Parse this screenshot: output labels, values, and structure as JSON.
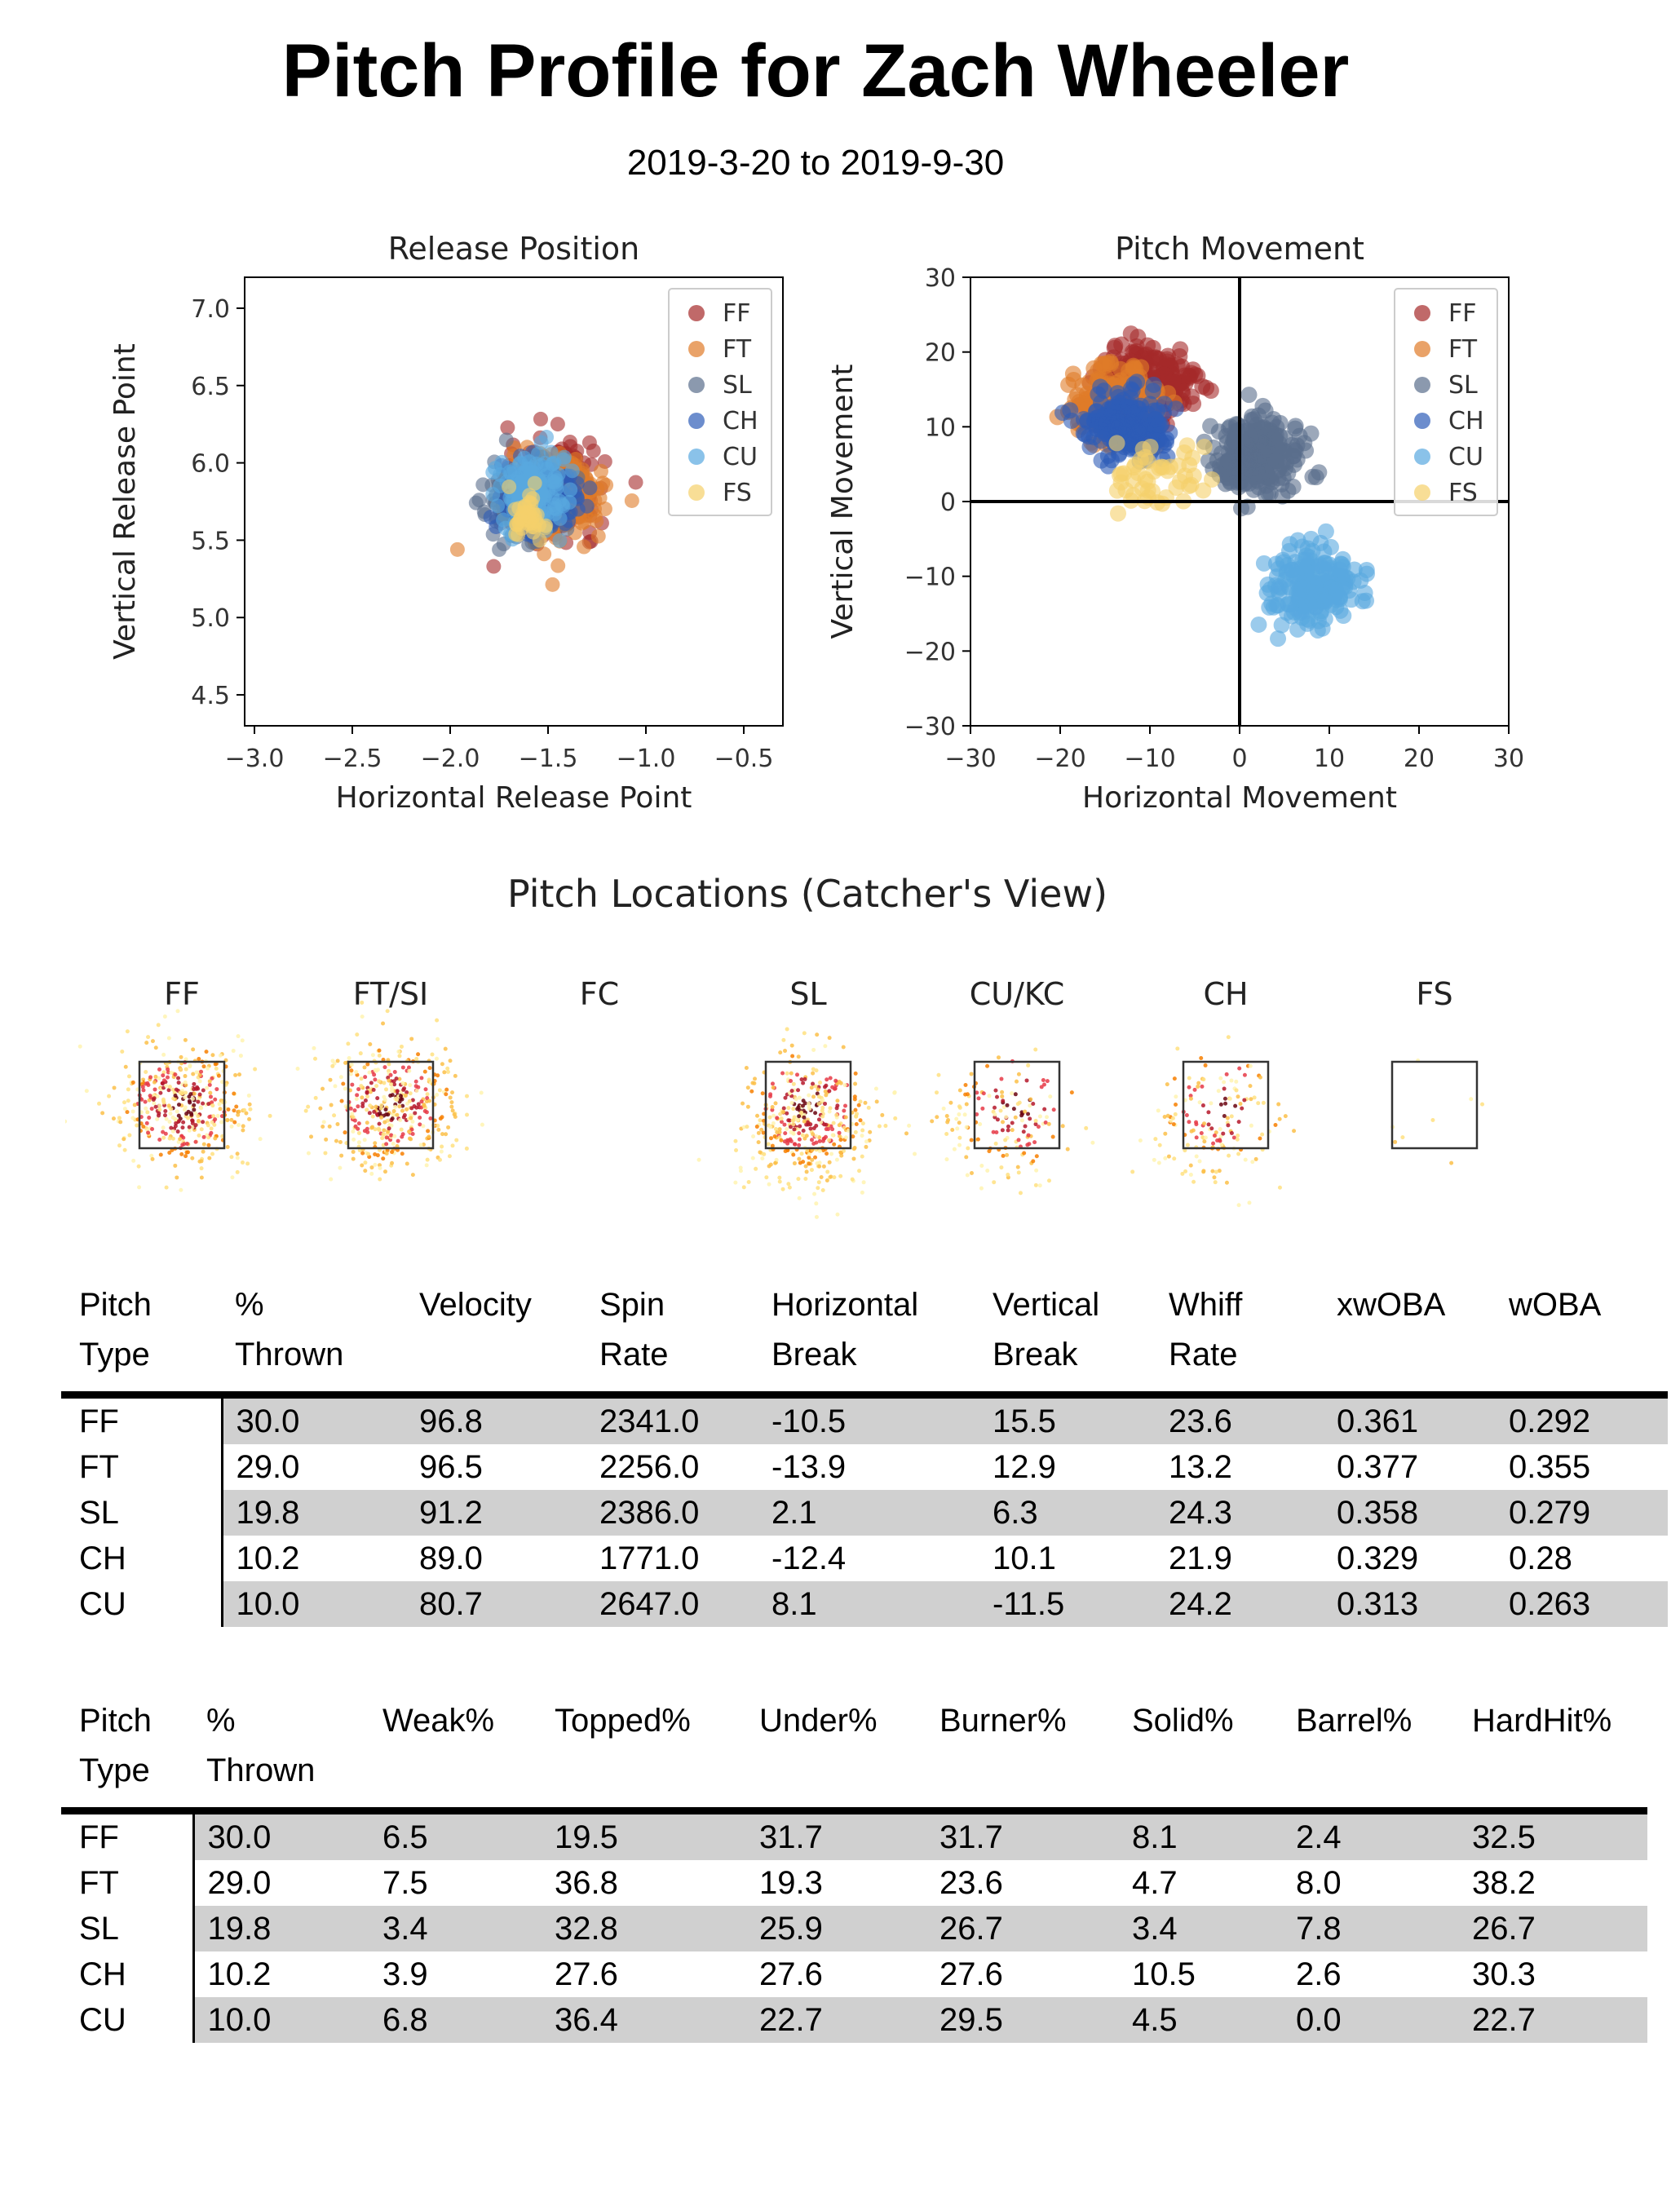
{
  "title": "Pitch Profile for Zach Wheeler",
  "subtitle": "2019-3-20 to 2019-9-30",
  "pitch_colors": {
    "FF": "#a52a2a",
    "FT": "#e07b28",
    "SL": "#5a6e8c",
    "CH": "#2d5cb8",
    "CU": "#58a8e0",
    "FS": "#f5d06a"
  },
  "chart_data": [
    {
      "type": "scatter",
      "title": "Release Position",
      "xlabel": "Horizontal Release Point",
      "ylabel": "Vertical Release Point",
      "xlim": [
        -3.05,
        -0.3
      ],
      "ylim": [
        4.3,
        7.2
      ],
      "xticks": [
        -3.0,
        -2.5,
        -2.0,
        -1.5,
        -1.0,
        -0.5
      ],
      "xtick_labels": [
        "−3.0",
        "−2.5",
        "−2.0",
        "−1.5",
        "−1.0",
        "−0.5"
      ],
      "yticks": [
        4.5,
        5.0,
        5.5,
        6.0,
        6.5,
        7.0
      ],
      "ytick_labels": [
        "4.5",
        "5.0",
        "5.5",
        "6.0",
        "6.5",
        "7.0"
      ],
      "legend": "top-right",
      "series": [
        {
          "name": "FF",
          "center": [
            -1.48,
            5.82
          ],
          "spread": [
            0.11,
            0.14
          ]
        },
        {
          "name": "FT",
          "center": [
            -1.45,
            5.78
          ],
          "spread": [
            0.12,
            0.14
          ]
        },
        {
          "name": "SL",
          "center": [
            -1.62,
            5.78
          ],
          "spread": [
            0.1,
            0.13
          ]
        },
        {
          "name": "CH",
          "center": [
            -1.55,
            5.78
          ],
          "spread": [
            0.1,
            0.12
          ]
        },
        {
          "name": "CU",
          "center": [
            -1.58,
            5.82
          ],
          "spread": [
            0.09,
            0.12
          ]
        },
        {
          "name": "FS",
          "center": [
            -1.6,
            5.65
          ],
          "spread": [
            0.05,
            0.08
          ]
        }
      ]
    },
    {
      "type": "scatter",
      "title": "Pitch Movement",
      "xlabel": "Horizontal Movement",
      "ylabel": "Vertical Movement",
      "xlim": [
        -30,
        30
      ],
      "ylim": [
        -30,
        30
      ],
      "xticks": [
        -30,
        -20,
        -10,
        0,
        10,
        20,
        30
      ],
      "xtick_labels": [
        "−30",
        "−20",
        "−10",
        "0",
        "10",
        "20",
        "30"
      ],
      "yticks": [
        -30,
        -20,
        -10,
        0,
        10,
        20,
        30
      ],
      "ytick_labels": [
        "−30",
        "−20",
        "−10",
        "0",
        "10",
        "20",
        "30"
      ],
      "legend": "top-right",
      "series": [
        {
          "name": "FF",
          "center": [
            -10.5,
            15.5
          ],
          "spread": [
            2.5,
            2.3
          ]
        },
        {
          "name": "FT",
          "center": [
            -13.9,
            12.9
          ],
          "spread": [
            2.5,
            2.6
          ]
        },
        {
          "name": "SL",
          "center": [
            2.1,
            6.3
          ],
          "spread": [
            2.3,
            2.4
          ]
        },
        {
          "name": "CH",
          "center": [
            -12.4,
            10.1
          ],
          "spread": [
            2.3,
            2.2
          ]
        },
        {
          "name": "CU",
          "center": [
            8.1,
            -11.5
          ],
          "spread": [
            2.6,
            2.6
          ]
        },
        {
          "name": "FS",
          "center": [
            -10.5,
            3.5
          ],
          "spread": [
            3.0,
            2.5
          ]
        }
      ]
    }
  ],
  "locations": {
    "title": "Pitch Locations (Catcher's View)",
    "panels": [
      {
        "label": "FF",
        "density": "high"
      },
      {
        "label": "FT/SI",
        "density": "high"
      },
      {
        "label": "FC",
        "density": "none"
      },
      {
        "label": "SL",
        "density": "high"
      },
      {
        "label": "CU/KC",
        "density": "medium"
      },
      {
        "label": "CH",
        "density": "medium"
      },
      {
        "label": "FS",
        "density": "low"
      }
    ]
  },
  "table1": {
    "headers": [
      "Pitch\nType",
      "%\nThrown",
      "Velocity",
      "Spin\nRate",
      "Horizontal\nBreak",
      "Vertical\nBreak",
      "Whiff\nRate",
      "xwOBA",
      "wOBA"
    ],
    "rows": [
      [
        "FF",
        "30.0",
        "96.8",
        "2341.0",
        "-10.5",
        "15.5",
        "23.6",
        "0.361",
        "0.292"
      ],
      [
        "FT",
        "29.0",
        "96.5",
        "2256.0",
        "-13.9",
        "12.9",
        "13.2",
        "0.377",
        "0.355"
      ],
      [
        "SL",
        "19.8",
        "91.2",
        "2386.0",
        "2.1",
        "6.3",
        "24.3",
        "0.358",
        "0.279"
      ],
      [
        "CH",
        "10.2",
        "89.0",
        "1771.0",
        "-12.4",
        "10.1",
        "21.9",
        "0.329",
        "0.28"
      ],
      [
        "CU",
        "10.0",
        "80.7",
        "2647.0",
        "8.1",
        "-11.5",
        "24.2",
        "0.313",
        "0.263"
      ]
    ]
  },
  "table2": {
    "headers": [
      "Pitch\nType",
      "%\nThrown",
      "Weak%",
      "Topped%",
      "Under%",
      "Burner%",
      "Solid%",
      "Barrel%",
      "HardHit%"
    ],
    "rows": [
      [
        "FF",
        "30.0",
        "6.5",
        "19.5",
        "31.7",
        "31.7",
        "8.1",
        "2.4",
        "32.5"
      ],
      [
        "FT",
        "29.0",
        "7.5",
        "36.8",
        "19.3",
        "23.6",
        "4.7",
        "8.0",
        "38.2"
      ],
      [
        "SL",
        "19.8",
        "3.4",
        "32.8",
        "25.9",
        "26.7",
        "3.4",
        "7.8",
        "26.7"
      ],
      [
        "CH",
        "10.2",
        "3.9",
        "27.6",
        "27.6",
        "27.6",
        "10.5",
        "2.6",
        "30.3"
      ],
      [
        "CU",
        "10.0",
        "6.8",
        "36.4",
        "22.7",
        "29.5",
        "4.5",
        "0.0",
        "22.7"
      ]
    ]
  }
}
